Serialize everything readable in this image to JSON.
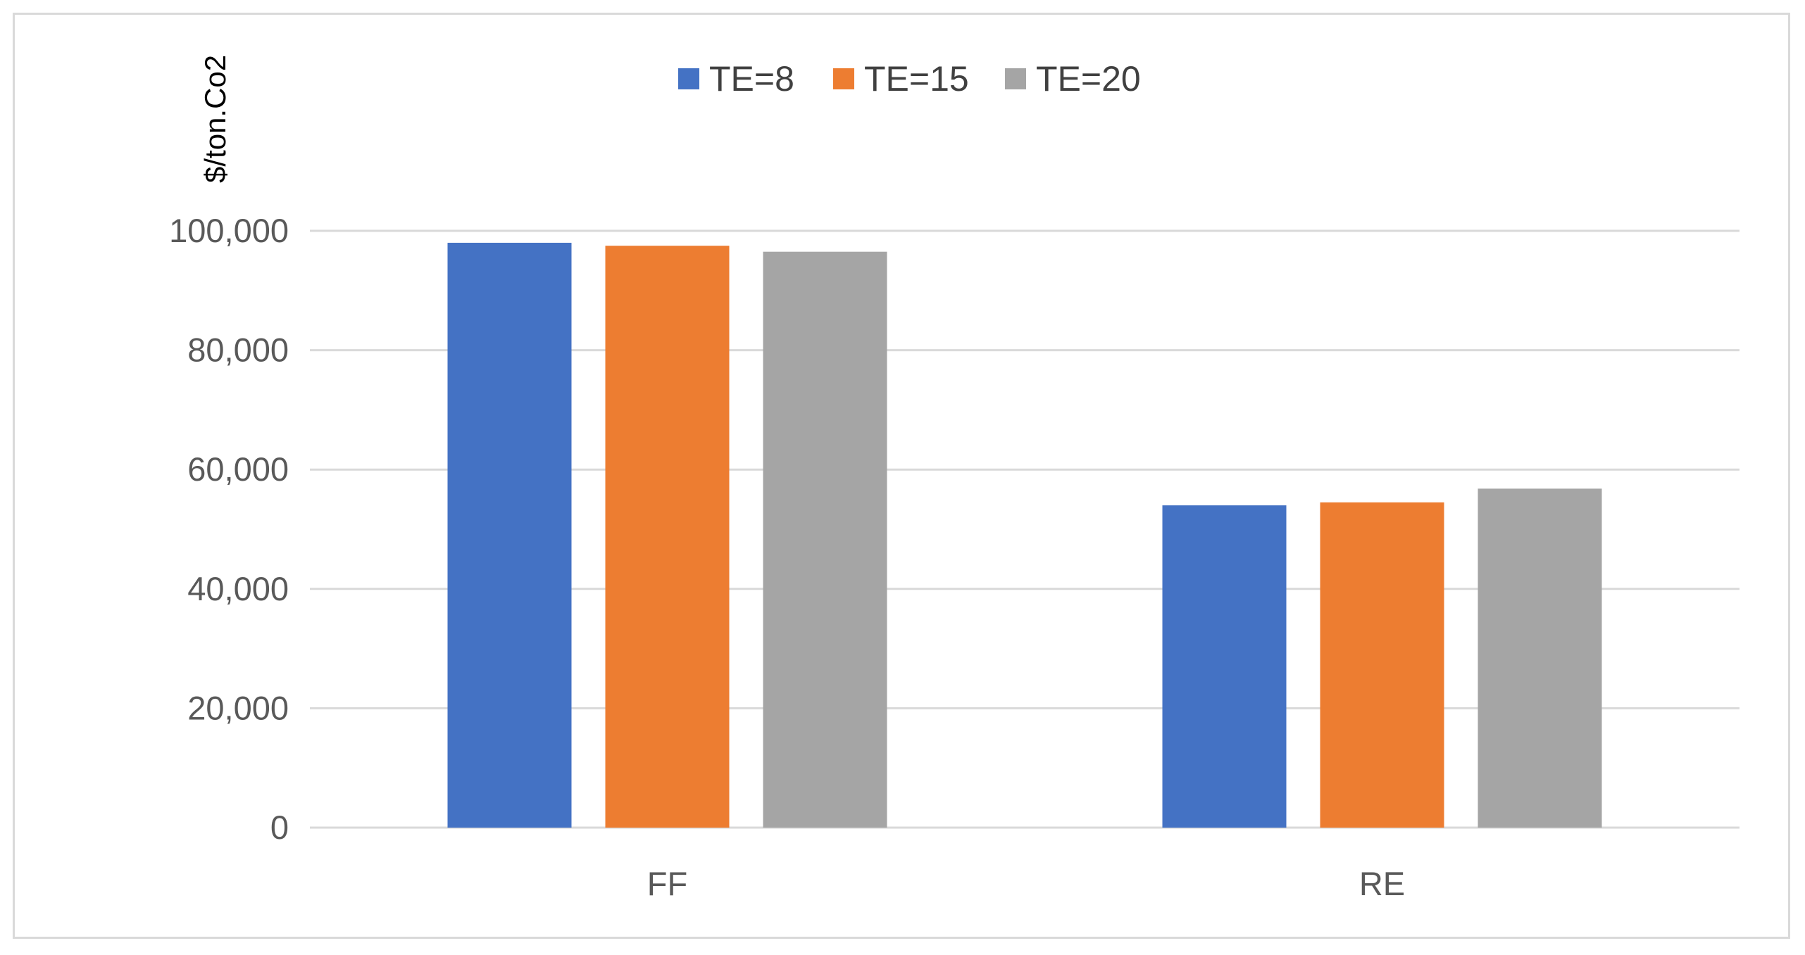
{
  "chart_data": {
    "type": "bar",
    "title": "",
    "xlabel": "",
    "ylabel": "$/ton.Co2",
    "categories": [
      "FF",
      "RE"
    ],
    "series": [
      {
        "name": "TE=8",
        "color": "#4472c4",
        "values": [
          98000,
          54000
        ]
      },
      {
        "name": "TE=15",
        "color": "#ed7d31",
        "values": [
          97500,
          54500
        ]
      },
      {
        "name": "TE=20",
        "color": "#a5a5a5",
        "values": [
          96500,
          56800
        ]
      }
    ],
    "ylim": [
      0,
      100000
    ],
    "yticks": [
      0,
      20000,
      40000,
      60000,
      80000,
      100000
    ],
    "ytick_labels": [
      "0",
      "20,000",
      "40,000",
      "60,000",
      "80,000",
      "100,000"
    ],
    "grid": true,
    "legend_position": "top-center"
  }
}
